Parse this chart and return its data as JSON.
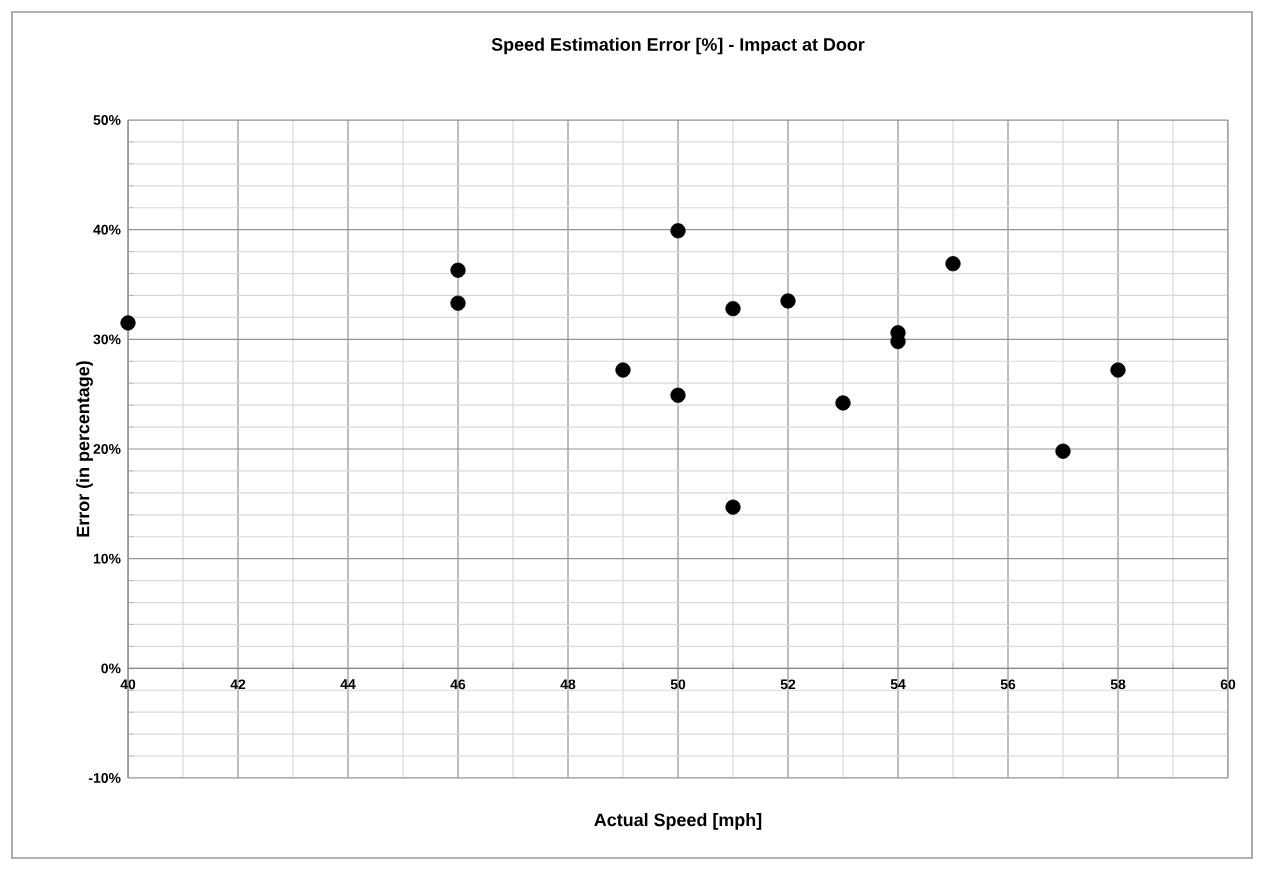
{
  "chart_data": {
    "type": "scatter",
    "title": "Speed Estimation Error [%] - Impact at Door",
    "xlabel": "Actual Speed [mph]",
    "ylabel": "Error (in percentage)",
    "x": [
      40,
      46,
      46,
      49,
      50,
      50,
      51,
      51,
      52,
      53,
      54,
      54,
      55,
      57,
      58
    ],
    "values": [
      31.5,
      36.3,
      33.3,
      27.2,
      39.9,
      24.9,
      32.8,
      14.7,
      33.5,
      24.2,
      30.6,
      29.8,
      36.9,
      19.8,
      27.2
    ],
    "color": "#000000",
    "marker": "circle",
    "xlim": [
      40,
      60
    ],
    "xticks": [
      40,
      42,
      44,
      46,
      48,
      50,
      52,
      54,
      56,
      58,
      60
    ],
    "ylim": [
      -10,
      50
    ],
    "yticks": [
      {
        "value": -10,
        "label": "-10%"
      },
      {
        "value": 0,
        "label": "0%"
      },
      {
        "value": 10,
        "label": "10%"
      },
      {
        "value": 20,
        "label": "20%"
      },
      {
        "value": 30,
        "label": "30%"
      },
      {
        "value": 40,
        "label": "40%"
      },
      {
        "value": 50,
        "label": "50%"
      }
    ],
    "grid": true
  }
}
